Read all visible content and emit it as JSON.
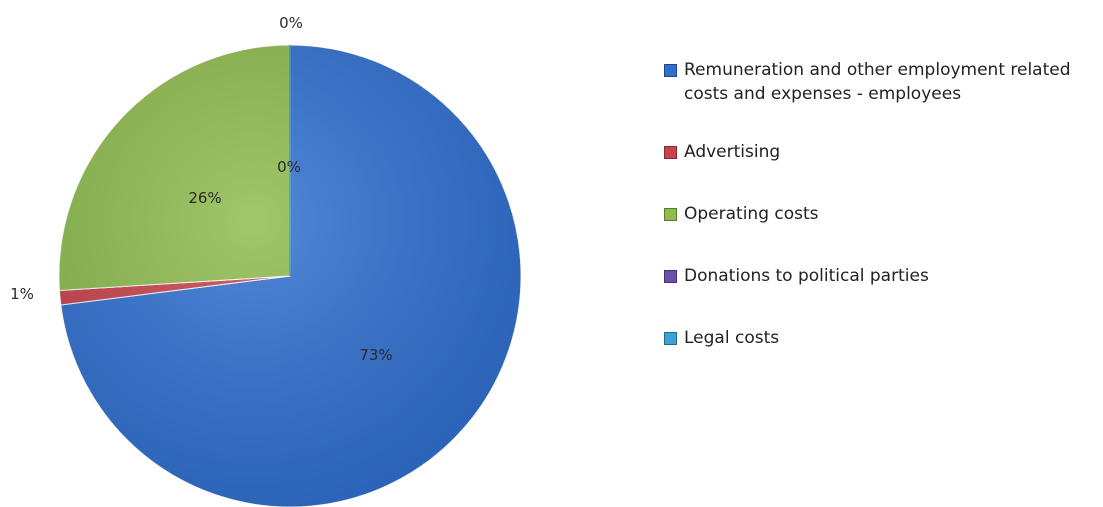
{
  "chart_data": {
    "type": "pie",
    "categories": [
      "Remuneration and other employment related costs and expenses - employees",
      "Advertising",
      "Operating costs",
      "Donations to political parties",
      "Legal costs"
    ],
    "values": [
      73,
      1,
      26,
      0,
      0
    ],
    "data_labels": [
      "73%",
      "1%",
      "26%",
      "0%",
      "0%"
    ],
    "colors": [
      "#2f6fd0",
      "#c8414b",
      "#8dbb4c",
      "#6a50a8",
      "#3aa3d5"
    ],
    "start_angle_deg": 0,
    "direction": "clockwise",
    "legend": "right"
  }
}
